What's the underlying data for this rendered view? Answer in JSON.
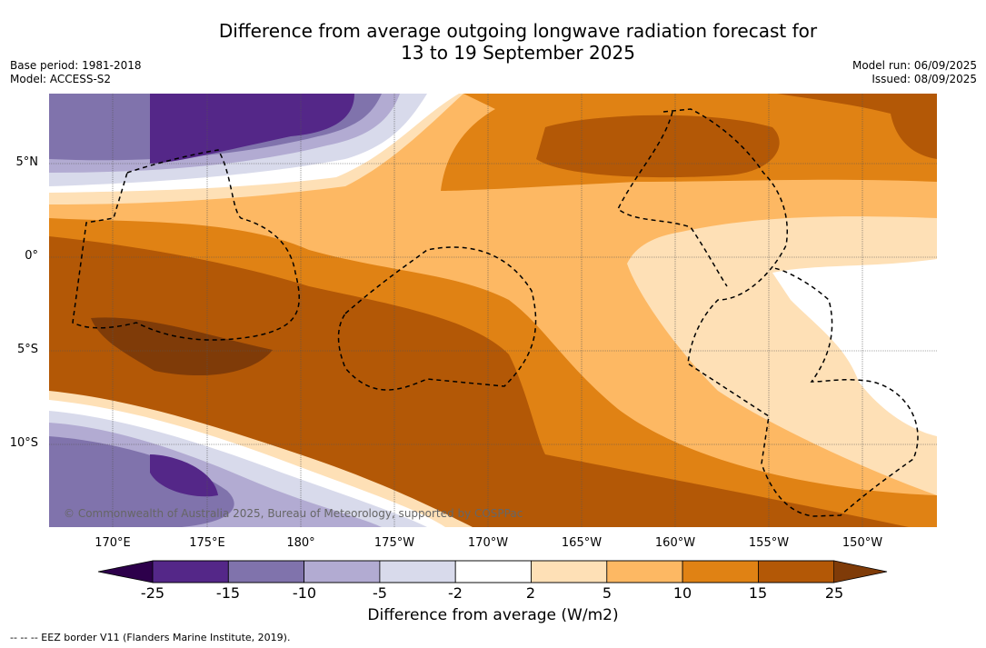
{
  "header": {
    "title_line1": "Difference from average outgoing longwave radiation forecast for",
    "title_line2": "13 to 19 September 2025",
    "base_period": "Base period: 1981-2018",
    "model": "Model: ACCESS-S2",
    "model_run": "Model run: 06/09/2025",
    "issued": "Issued: 08/09/2025"
  },
  "map": {
    "lat_labels": [
      "5°N",
      "0°",
      "5°S",
      "10°S"
    ],
    "lon_labels": [
      "170°E",
      "175°E",
      "180°",
      "175°W",
      "170°W",
      "165°W",
      "160°W",
      "155°W",
      "150°W"
    ],
    "credit": "© Commonwealth of Australia 2025, Bureau of Meteorology, supported by COSPPac"
  },
  "colorbar": {
    "ticks": [
      "-25",
      "-15",
      "-10",
      "-5",
      "-2",
      "2",
      "5",
      "10",
      "15",
      "25"
    ],
    "colors": {
      "under": "#2d004b",
      "bins": [
        "#542788",
        "#8073ac",
        "#b2abd2",
        "#d8daeb",
        "#ffffff",
        "#fee0b6",
        "#fdb863",
        "#e08214",
        "#b35806"
      ],
      "over": "#7f3b08"
    },
    "title": "Difference from average (W/m2)"
  },
  "footnote": "--  --  -- EEZ border V11 (Flanders Marine Institute, 2019)."
}
